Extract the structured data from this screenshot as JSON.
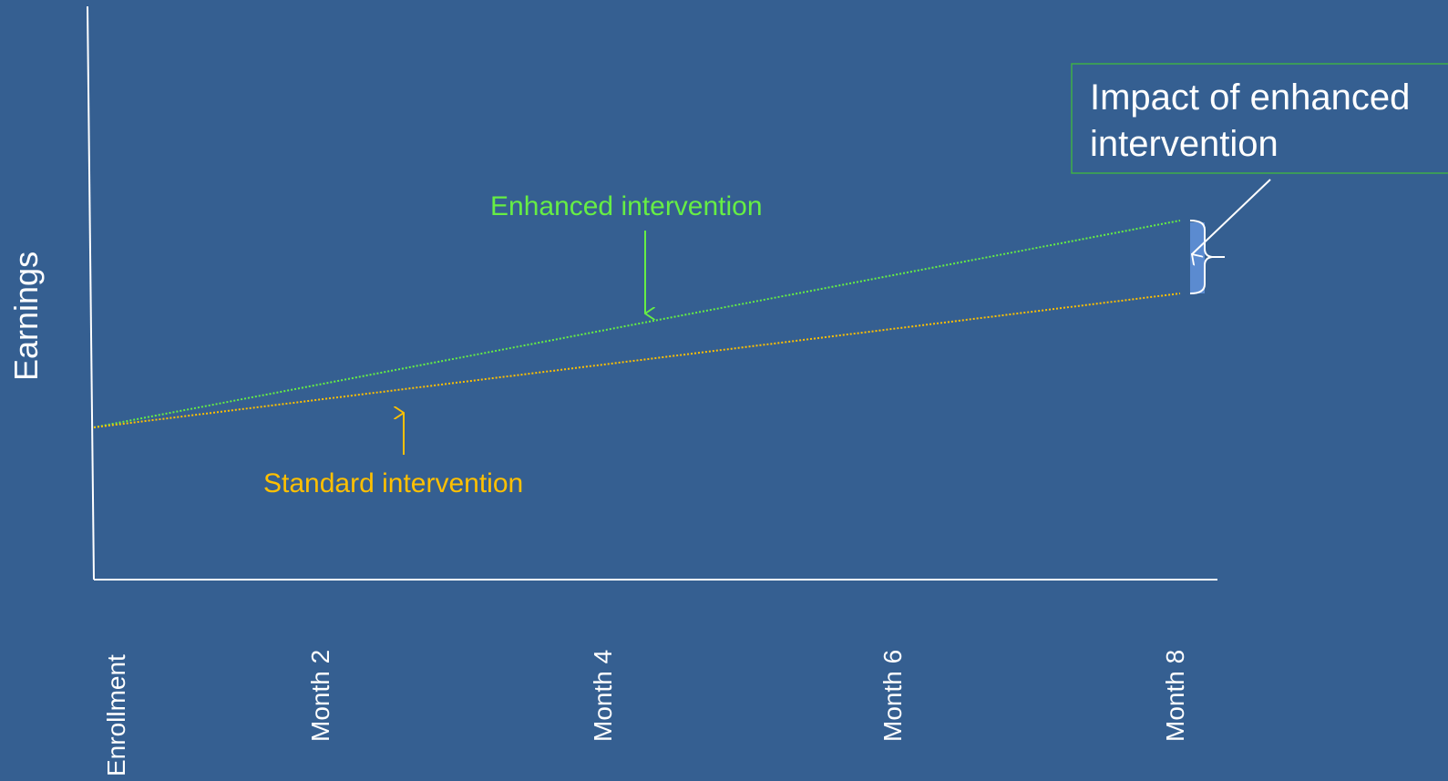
{
  "colors": {
    "background": "#355f91",
    "axis": "#ffffff",
    "enhanced": "#66ee44",
    "standard": "#ffc000",
    "callout_border": "#3fae49",
    "impact_fill": "#5b8bd0"
  },
  "y_axis": {
    "label": "Earnings"
  },
  "x_axis": {
    "ticks": [
      "Enrollment",
      "Month 2",
      "Month 4",
      "Month 6",
      "Month 8"
    ]
  },
  "series": {
    "enhanced": {
      "label": "Enhanced intervention",
      "line_style": "dotted"
    },
    "standard": {
      "label": "Standard intervention",
      "line_style": "dotted"
    }
  },
  "callout": {
    "line1": "Impact of enhanced",
    "line2": "intervention"
  }
}
